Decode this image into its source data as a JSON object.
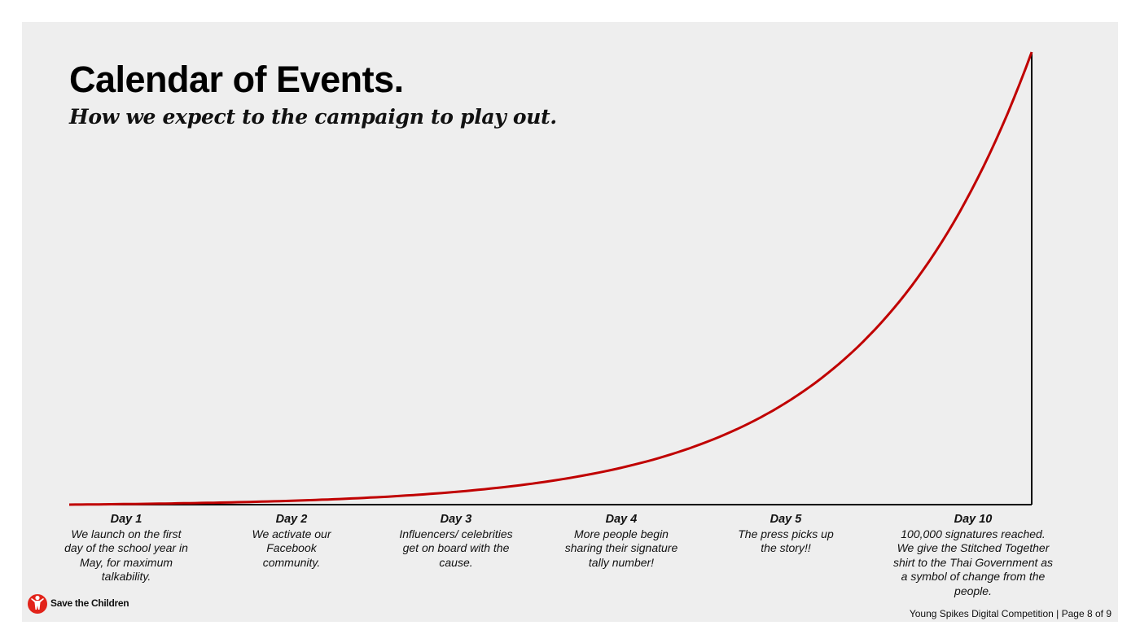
{
  "slide": {
    "title": "Calendar of Events.",
    "subtitle": "How we expect to the campaign to play out."
  },
  "timeline": {
    "days": [
      {
        "label": "Day 1",
        "description": "We launch on the first day of the school year in May, for maximum talkability."
      },
      {
        "label": "Day 2",
        "description": "We activate our Facebook community."
      },
      {
        "label": "Day 3",
        "description": "Influencers/ celebrities get on board with the cause."
      },
      {
        "label": "Day 4",
        "description": "More people begin sharing their signature tally number!"
      },
      {
        "label": "Day 5",
        "description": "The press picks up the story!!"
      },
      {
        "label": "Day 10",
        "description": "100,000 signatures reached. We give the Stitched Together shirt to the Thai Government as a symbol of change from the people."
      }
    ],
    "curve_color": "#c00000",
    "axis_color": "#000000"
  },
  "branding": {
    "logo_text": "Save the Children",
    "logo_icon": "save-the-children-emblem",
    "logo_color": "#e2231a"
  },
  "footer": {
    "text": "Young Spikes Digital Competition | Page 8 of 9"
  }
}
